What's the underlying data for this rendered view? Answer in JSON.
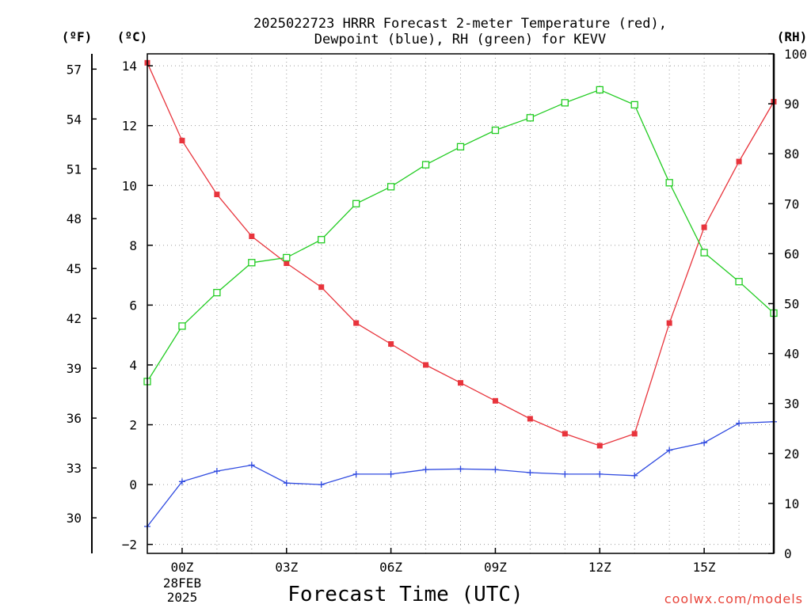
{
  "chart_data": {
    "type": "line",
    "title_line1": "2025022723 HRRR Forecast 2-meter Temperature (red),",
    "title_line2": "Dewpoint (blue), RH (green) for KEVV",
    "xlabel": "Forecast Time (UTC)",
    "credit": "coolwx.com/models",
    "units": {
      "fahrenheit": "(ºF)",
      "celsius": "(ºC)",
      "rh": "(RH)"
    },
    "date_label": [
      "28FEB",
      "2025"
    ],
    "x_ticks": [
      {
        "x": 0,
        "label": "00Z"
      },
      {
        "x": 3,
        "label": "03Z"
      },
      {
        "x": 6,
        "label": "06Z"
      },
      {
        "x": 9,
        "label": "09Z"
      },
      {
        "x": 12,
        "label": "12Z"
      },
      {
        "x": 15,
        "label": "15Z"
      }
    ],
    "xlim": [
      -1,
      17
    ],
    "celsius_axis": {
      "ylim": [
        -2.3,
        14.4
      ],
      "ticks": [
        -2,
        0,
        2,
        4,
        6,
        8,
        10,
        12,
        14
      ]
    },
    "fahrenheit_axis": {
      "ticks": [
        30,
        33,
        36,
        39,
        42,
        45,
        48,
        51,
        54,
        57
      ]
    },
    "rh_axis": {
      "ylim": [
        0,
        100
      ],
      "ticks": [
        0,
        10,
        20,
        30,
        40,
        50,
        60,
        70,
        80,
        90,
        100
      ]
    },
    "grid": true,
    "series": [
      {
        "color": "#e8343c",
        "marker": "filled-square",
        "axis": "celsius",
        "x": [
          -1,
          0,
          1,
          2,
          3,
          4,
          5,
          6,
          7,
          8,
          9,
          10,
          11,
          12,
          13,
          14,
          15,
          16,
          17
        ],
        "values": [
          14.1,
          11.5,
          9.7,
          8.3,
          7.4,
          6.6,
          5.4,
          4.7,
          4.0,
          3.4,
          2.8,
          2.2,
          1.7,
          1.3,
          1.7,
          5.4,
          8.6,
          10.8,
          12.8
        ]
      },
      {
        "color": "#2f4ae0",
        "marker": "plus",
        "axis": "celsius",
        "x": [
          -1,
          0,
          1,
          2,
          3,
          4,
          5,
          6,
          7,
          8,
          9,
          10,
          11,
          12,
          13,
          14,
          15,
          16,
          17
        ],
        "values": [
          -1.4,
          0.1,
          0.45,
          0.65,
          0.05,
          0.0,
          0.35,
          0.35,
          0.5,
          0.52,
          0.5,
          0.4,
          0.35,
          0.35,
          0.3,
          1.15,
          1.4,
          2.05,
          2.1
        ]
      },
      {
        "color": "#22cc22",
        "marker": "open-square",
        "axis": "rh",
        "x": [
          -1,
          0,
          1,
          2,
          3,
          4,
          5,
          6,
          7,
          8,
          9,
          10,
          11,
          12,
          13,
          14,
          15,
          16,
          17
        ],
        "values": [
          34.4,
          45.5,
          52.2,
          58.2,
          59.2,
          62.8,
          70.0,
          73.4,
          77.8,
          81.4,
          84.7,
          87.2,
          90.2,
          92.8,
          89.8,
          74.2,
          60.2,
          54.4,
          48.1
        ]
      }
    ]
  }
}
